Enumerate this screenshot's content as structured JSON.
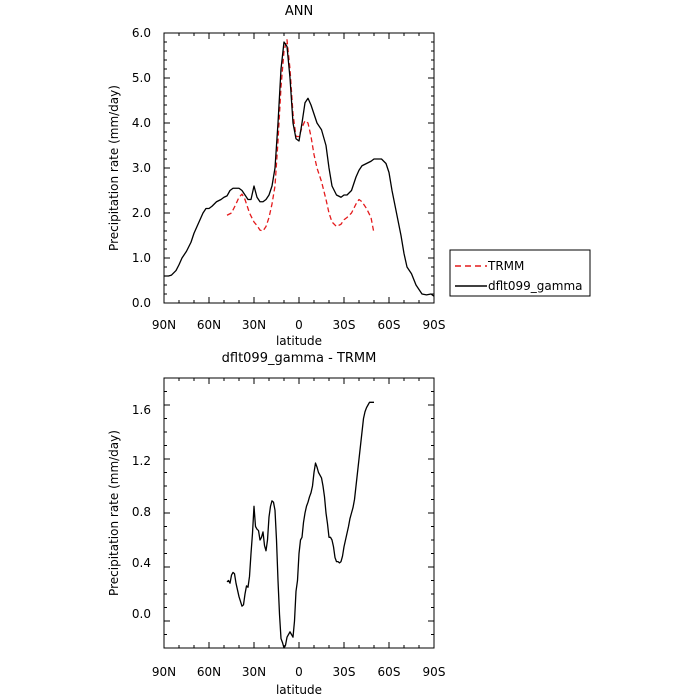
{
  "chart_data": [
    {
      "type": "line",
      "title": "ANN",
      "xlabel": "latitude",
      "ylabel": "Precipitation rate (mm/day)",
      "x_ticks": [
        "90N",
        "60N",
        "30N",
        "0",
        "30S",
        "60S",
        "90S"
      ],
      "y_ticks": [
        "0.0",
        "1.0",
        "2.0",
        "3.0",
        "4.0",
        "5.0",
        "6.0"
      ],
      "xlim": [
        -90,
        90
      ],
      "ylim": [
        0,
        6
      ],
      "legend_position": "right",
      "series": [
        {
          "name": "TRMM",
          "color": "#e41a1c",
          "dash": "dashed",
          "x": [
            -48,
            -45,
            -42,
            -40,
            -38,
            -36,
            -33,
            -30,
            -28,
            -26,
            -24,
            -22,
            -20,
            -18,
            -16,
            -14,
            -12,
            -10,
            -8,
            -6,
            -4,
            -2,
            0,
            2,
            4,
            6,
            8,
            10,
            12,
            15,
            18,
            20,
            22,
            25,
            28,
            30,
            32,
            35,
            38,
            40,
            42,
            45,
            48,
            50
          ],
          "y": [
            1.95,
            2.0,
            2.2,
            2.35,
            2.42,
            2.3,
            2.0,
            1.8,
            1.72,
            1.62,
            1.6,
            1.7,
            1.9,
            2.2,
            2.6,
            3.6,
            4.8,
            5.6,
            5.85,
            5.2,
            4.2,
            3.7,
            3.7,
            3.9,
            4.05,
            4.0,
            3.7,
            3.3,
            3.0,
            2.7,
            2.3,
            2.0,
            1.8,
            1.7,
            1.75,
            1.85,
            1.9,
            2.0,
            2.2,
            2.3,
            2.25,
            2.1,
            1.9,
            1.55
          ]
        },
        {
          "name": "dflt099_gamma",
          "color": "#000000",
          "dash": "solid",
          "x": [
            -90,
            -87,
            -85,
            -82,
            -80,
            -78,
            -75,
            -72,
            -70,
            -68,
            -66,
            -64,
            -62,
            -60,
            -58,
            -55,
            -52,
            -50,
            -48,
            -46,
            -44,
            -42,
            -40,
            -38,
            -36,
            -34,
            -32,
            -30,
            -28,
            -26,
            -24,
            -22,
            -20,
            -18,
            -16,
            -14,
            -12,
            -10,
            -8,
            -6,
            -4,
            -2,
            0,
            2,
            4,
            6,
            8,
            10,
            12,
            15,
            18,
            20,
            22,
            25,
            28,
            30,
            32,
            35,
            38,
            40,
            42,
            45,
            48,
            50,
            52,
            55,
            58,
            60,
            62,
            65,
            68,
            70,
            72,
            75,
            78,
            80,
            82,
            85,
            88,
            90
          ],
          "y": [
            0.6,
            0.6,
            0.62,
            0.72,
            0.85,
            1.0,
            1.15,
            1.35,
            1.55,
            1.7,
            1.85,
            2.0,
            2.1,
            2.1,
            2.15,
            2.25,
            2.3,
            2.35,
            2.38,
            2.5,
            2.55,
            2.55,
            2.55,
            2.5,
            2.4,
            2.3,
            2.3,
            2.6,
            2.35,
            2.25,
            2.25,
            2.3,
            2.4,
            2.6,
            3.0,
            4.0,
            5.2,
            5.8,
            5.7,
            5.0,
            4.0,
            3.65,
            3.6,
            4.0,
            4.45,
            4.55,
            4.4,
            4.2,
            4.0,
            3.85,
            3.5,
            3.0,
            2.6,
            2.4,
            2.35,
            2.4,
            2.4,
            2.5,
            2.8,
            2.95,
            3.05,
            3.1,
            3.15,
            3.2,
            3.2,
            3.2,
            3.1,
            2.9,
            2.5,
            2.0,
            1.5,
            1.1,
            0.8,
            0.65,
            0.4,
            0.3,
            0.2,
            0.18,
            0.2,
            0.15
          ]
        }
      ]
    },
    {
      "type": "line",
      "title": "dflt099_gamma - TRMM",
      "xlabel": "latitude",
      "ylabel": "Precipitation rate (mm/day)",
      "x_ticks": [
        "90N",
        "60N",
        "30N",
        "0",
        "30S",
        "60S",
        "90S"
      ],
      "y_ticks": [
        "0.0",
        "0.4",
        "0.8",
        "1.2",
        "1.6"
      ],
      "xlim": [
        -90,
        90
      ],
      "ylim": [
        -0.2,
        1.8
      ],
      "series": [
        {
          "name": "",
          "color": "#000000",
          "dash": "solid",
          "x": [
            -48,
            -47,
            -46,
            -45,
            -44,
            -43,
            -42,
            -40,
            -38,
            -37,
            -36,
            -35,
            -34,
            -33,
            -32,
            -31,
            -30,
            -29,
            -28,
            -27,
            -26,
            -25,
            -24,
            -23,
            -22,
            -21,
            -20,
            -19,
            -18,
            -17,
            -16,
            -15,
            -14,
            -13,
            -12,
            -11,
            -10,
            -9,
            -8,
            -6,
            -5,
            -4,
            -3,
            -2,
            -1,
            0,
            1,
            2,
            3,
            4,
            5,
            6,
            7,
            8,
            9,
            10,
            11,
            12,
            13,
            14,
            15,
            16,
            17,
            18,
            19,
            20,
            21,
            22,
            23,
            24,
            25,
            26,
            27,
            28,
            29,
            30,
            31,
            32,
            33,
            34,
            35,
            36,
            37,
            38,
            39,
            40,
            41,
            42,
            43,
            44,
            45,
            46,
            47,
            48,
            49,
            50
          ],
          "y": [
            0.29,
            0.3,
            0.28,
            0.34,
            0.36,
            0.35,
            0.28,
            0.18,
            0.11,
            0.12,
            0.2,
            0.26,
            0.25,
            0.33,
            0.5,
            0.65,
            0.85,
            0.7,
            0.68,
            0.67,
            0.6,
            0.62,
            0.66,
            0.56,
            0.52,
            0.6,
            0.77,
            0.85,
            0.89,
            0.88,
            0.82,
            0.6,
            0.3,
            0.05,
            -0.13,
            -0.16,
            -0.2,
            -0.18,
            -0.12,
            -0.08,
            -0.1,
            -0.12,
            0.0,
            0.22,
            0.3,
            0.5,
            0.6,
            0.62,
            0.73,
            0.8,
            0.85,
            0.88,
            0.92,
            0.95,
            1.0,
            1.1,
            1.17,
            1.14,
            1.1,
            1.08,
            1.06,
            1.0,
            0.92,
            0.8,
            0.72,
            0.62,
            0.62,
            0.6,
            0.55,
            0.47,
            0.44,
            0.44,
            0.43,
            0.44,
            0.48,
            0.55,
            0.6,
            0.65,
            0.7,
            0.76,
            0.8,
            0.84,
            0.9,
            1.0,
            1.1,
            1.2,
            1.3,
            1.4,
            1.5,
            1.55,
            1.58,
            1.6,
            1.62,
            1.62,
            1.62,
            1.62
          ]
        }
      ]
    }
  ]
}
